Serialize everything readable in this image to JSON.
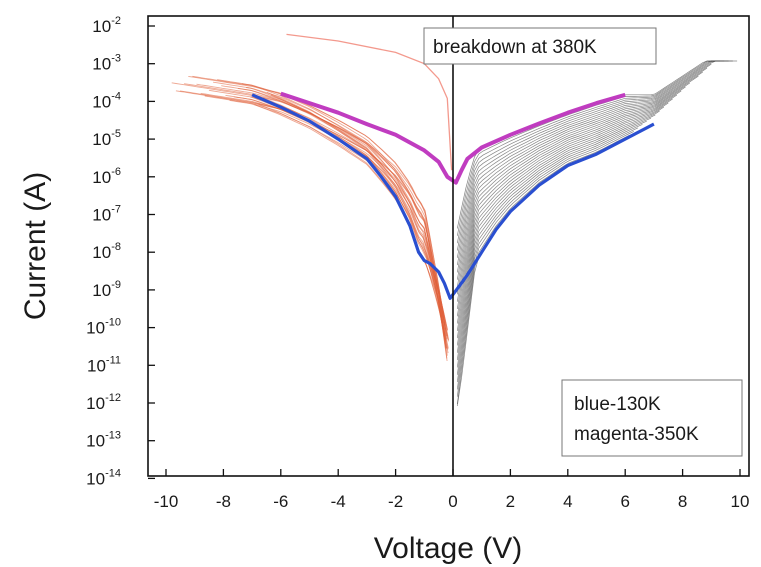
{
  "chart_data": {
    "type": "line",
    "title": "",
    "xlabel": "Voltage (V)",
    "ylabel": "Current (A)",
    "xlim": [
      -11,
      11
    ],
    "ylim_log10": [
      -14,
      -2
    ],
    "yscale": "log",
    "x_ticks": [
      "-10",
      "-8",
      "-6",
      "-4",
      "-2",
      "0",
      "2",
      "4",
      "6",
      "8",
      "10"
    ],
    "y_tick_base": "10",
    "y_tick_exponents": [
      "-2",
      "-3",
      "-4",
      "-5",
      "-6",
      "-7",
      "-8",
      "-9",
      "-10",
      "-11",
      "-12",
      "-13",
      "-14"
    ],
    "grid": false,
    "annotations": {
      "breakdown": "breakdown at 380K",
      "legend_line1": "blue-130K",
      "legend_line2": "magenta-350K"
    },
    "colors": {
      "blue": "#2a4fd0",
      "magenta": "#c03cc0",
      "reverse_family": "#e0603a",
      "forward_family": "#333333",
      "breakdown_curve": "#f08070"
    },
    "series": [
      {
        "label": "blue-130K",
        "x": [
          -7,
          -6,
          -5,
          -4,
          -3,
          -2.5,
          -2,
          -1.5,
          -1.2,
          -1,
          -0.8,
          -0.5,
          -0.3,
          -0.1,
          0.2,
          0.5,
          1,
          1.5,
          2,
          3,
          4,
          5,
          6,
          7
        ],
        "y": [
          0.00015,
          7e-05,
          3e-05,
          1e-05,
          3e-06,
          1e-06,
          3e-07,
          5e-08,
          1e-08,
          6e-09,
          5e-09,
          3e-09,
          1.5e-09,
          6e-10,
          1.2e-09,
          2.5e-09,
          1e-08,
          4e-08,
          1.2e-07,
          6e-07,
          2e-06,
          4e-06,
          1e-05,
          2.5e-05
        ]
      },
      {
        "label": "magenta-350K",
        "x": [
          -6,
          -5,
          -4,
          -3,
          -2,
          -1,
          -0.5,
          -0.2,
          0.1,
          0.3,
          0.5,
          1,
          2,
          3,
          4,
          5,
          6
        ],
        "y": [
          0.00016,
          9e-05,
          5e-05,
          2.5e-05,
          1.3e-05,
          5e-06,
          2.5e-06,
          1e-06,
          7e-07,
          1.5e-06,
          3e-06,
          6e-06,
          1.3e-05,
          2.6e-05,
          5e-05,
          9e-05,
          0.00015
        ]
      }
    ]
  }
}
